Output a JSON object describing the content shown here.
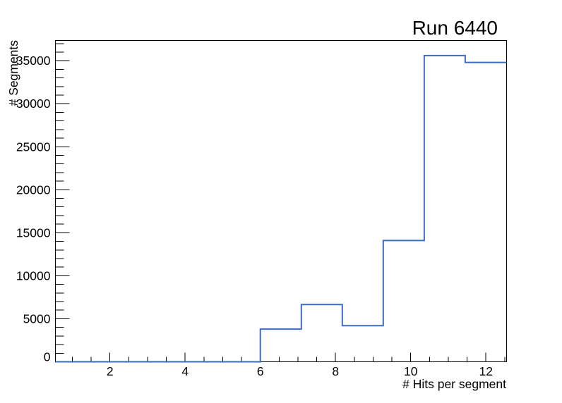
{
  "chart_data": {
    "type": "histogram",
    "style": "step",
    "title": "Run 6440",
    "xlabel": "# Hits per segment",
    "ylabel": "# Segments",
    "bin_edges": [
      0.55,
      1.64,
      2.73,
      3.82,
      4.91,
      6.0,
      7.09,
      8.18,
      9.27,
      10.36,
      11.45,
      12.55
    ],
    "counts": [
      0,
      0,
      0,
      0,
      0,
      3800,
      6660,
      4200,
      14100,
      35600,
      34800
    ],
    "xlim": [
      0.55,
      12.55
    ],
    "ylim": [
      0,
      37350
    ],
    "x_major_ticks": [
      2,
      4,
      6,
      8,
      10,
      12
    ],
    "x_major_tick_labels": [
      "2",
      "4",
      "6",
      "8",
      "10",
      "12"
    ],
    "x_minor_tick_step": 0.5,
    "y_major_tick_step": 5000,
    "y_minor_tick_step": 1000,
    "y_tick_labels": [
      "0",
      "5000",
      "10000",
      "15000",
      "20000",
      "25000",
      "30000",
      "35000"
    ],
    "grid": false,
    "legend": null,
    "line_color": "#3b6bc5",
    "axis_color": "#000000",
    "background_color": "#ffffff"
  }
}
